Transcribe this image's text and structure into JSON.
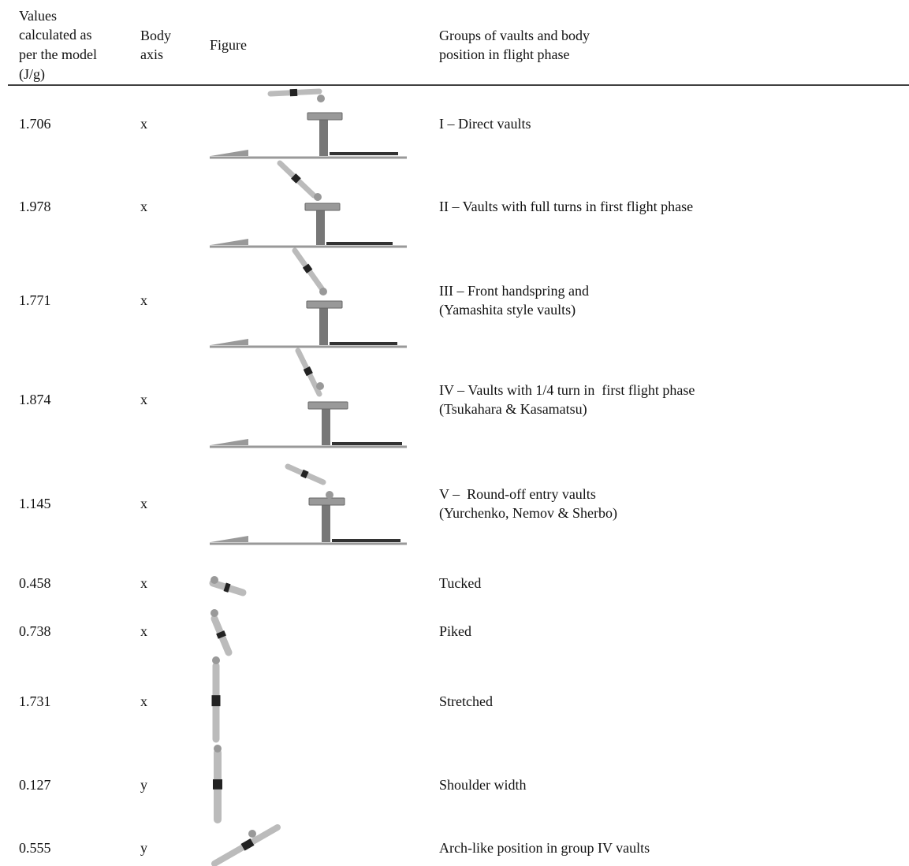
{
  "table": {
    "header": [
      [
        "Values",
        "calculated as",
        "per the model",
        "(J/g)"
      ],
      [
        "Body",
        "axis"
      ],
      [
        "Figure"
      ],
      [
        "Groups of vaults and body",
        "position in flight phase"
      ]
    ],
    "rows": [
      {
        "value": "1.706",
        "axis": "x",
        "description": [
          "I – Direct vaults"
        ]
      },
      {
        "value": "1.978",
        "axis": "x",
        "description": [
          "II – Vaults with full turns in first flight phase"
        ]
      },
      {
        "value": "1.771",
        "axis": "x",
        "description": [
          "III – Front handspring and",
          "(Yamashita style vaults)"
        ]
      },
      {
        "value": "1.874",
        "axis": "x",
        "description": [
          "IV – Vaults with 1/4 turn in  first flight phase",
          "(Tsukahara & Kasamatsu)"
        ]
      },
      {
        "value": "1.145",
        "axis": "x",
        "description": [
          "V –  Round-off entry vaults",
          "(Yurchenko, Nemov & Sherbo)"
        ]
      },
      {
        "value": "0.458",
        "axis": "x",
        "description": [
          "Tucked"
        ]
      },
      {
        "value": "0.738",
        "axis": "x",
        "description": [
          "Piked"
        ]
      },
      {
        "value": "1.731",
        "axis": "x",
        "description": [
          "Stretched"
        ]
      },
      {
        "value": "0.127",
        "axis": "y",
        "description": [
          "Shoulder width"
        ]
      },
      {
        "value": "0.555",
        "axis": "y",
        "description": [
          "Arch-like position in group IV vaults"
        ]
      }
    ]
  }
}
